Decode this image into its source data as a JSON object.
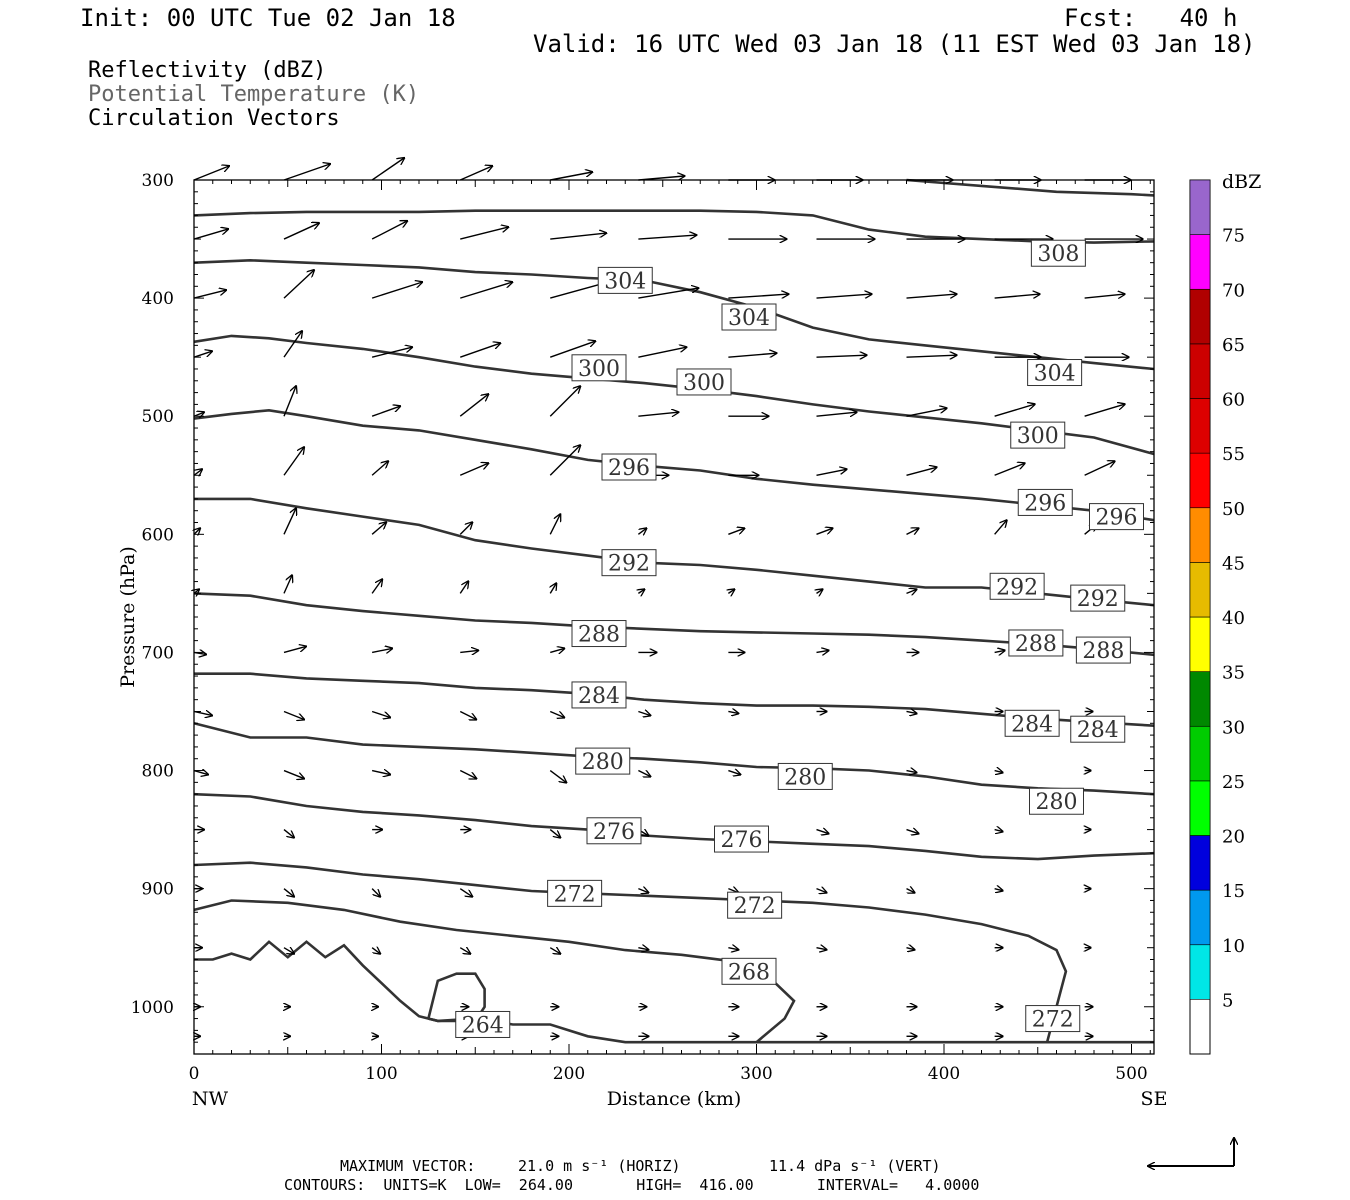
{
  "header": {
    "init": "Init: 00 UTC Tue 02 Jan 18",
    "fcst": "Fcst:   40 h",
    "valid": "Valid: 16 UTC Wed 03 Jan 18 (11 EST Wed 03 Jan 18)"
  },
  "legend_lines": [
    {
      "text": "Reflectivity (dBZ)",
      "color": "#000000"
    },
    {
      "text": "Potential Temperature (K)",
      "color": "#666666"
    },
    {
      "text": "Circulation Vectors",
      "color": "#000000"
    }
  ],
  "chart_data": {
    "type": "line",
    "xlabel": "Distance (km)",
    "ylabel": "Pressure (hPa)",
    "xlim": [
      0,
      512
    ],
    "ylim": [
      1040,
      300
    ],
    "x_ticks": [
      0,
      100,
      200,
      300,
      400,
      500
    ],
    "y_ticks": [
      300,
      400,
      500,
      600,
      700,
      800,
      900,
      1000
    ],
    "x_end_labels": {
      "left": "NW",
      "right": "SE"
    },
    "contour_color": "#333333",
    "series": [
      {
        "label": "264",
        "label_points": [
          [
            154,
            1015
          ]
        ],
        "x": [
          125,
          130,
          140,
          150,
          155,
          155,
          150,
          140,
          130,
          125,
          125
        ],
        "y": [
          1010,
          978,
          972,
          972,
          985,
          1000,
          1012,
          1012,
          1012,
          1010,
          1010
        ]
      },
      {
        "label": "",
        "label_points": [],
        "x": [
          0,
          10,
          20,
          30,
          40,
          50,
          60,
          70,
          80,
          90,
          100,
          110,
          120,
          130,
          150,
          170,
          190,
          210,
          230,
          260,
          290,
          320,
          350,
          380,
          400,
          430,
          460,
          490,
          512
        ],
        "y": [
          960,
          960,
          955,
          960,
          945,
          958,
          945,
          958,
          948,
          965,
          980,
          995,
          1008,
          1012,
          1010,
          1015,
          1015,
          1025,
          1030,
          1030,
          1030,
          1030,
          1030,
          1030,
          1030,
          1030,
          1030,
          1030,
          1030
        ]
      },
      {
        "label": "268",
        "label_points": [
          [
            296,
            970
          ]
        ],
        "x": [
          0,
          20,
          50,
          80,
          110,
          140,
          170,
          200,
          230,
          260,
          290,
          310,
          320,
          315,
          300
        ],
        "y": [
          918,
          910,
          912,
          918,
          928,
          935,
          940,
          945,
          952,
          956,
          962,
          980,
          995,
          1010,
          1030
        ]
      },
      {
        "label": "272",
        "label_points": [
          [
            203,
            904
          ],
          [
            299,
            914
          ],
          [
            458,
            1010
          ]
        ],
        "x": [
          0,
          30,
          60,
          90,
          120,
          150,
          180,
          210,
          240,
          270,
          300,
          330,
          360,
          390,
          420,
          445,
          460,
          465,
          460,
          455
        ],
        "y": [
          880,
          878,
          882,
          888,
          892,
          897,
          902,
          904,
          906,
          908,
          910,
          912,
          916,
          922,
          930,
          940,
          952,
          970,
          1000,
          1030
        ]
      },
      {
        "label": "276",
        "label_points": [
          [
            224,
            851
          ],
          [
            292,
            858
          ]
        ],
        "x": [
          0,
          30,
          60,
          90,
          120,
          150,
          180,
          210,
          240,
          270,
          300,
          330,
          360,
          390,
          420,
          450,
          480,
          512
        ],
        "y": [
          820,
          822,
          830,
          835,
          838,
          842,
          847,
          850,
          855,
          858,
          860,
          862,
          864,
          868,
          873,
          875,
          872,
          870
        ]
      },
      {
        "label": "280",
        "label_points": [
          [
            218,
            792
          ],
          [
            326,
            805
          ],
          [
            460,
            826
          ]
        ],
        "x": [
          0,
          30,
          60,
          90,
          120,
          150,
          180,
          210,
          240,
          270,
          300,
          330,
          360,
          390,
          420,
          450,
          480,
          512
        ],
        "y": [
          760,
          772,
          772,
          778,
          780,
          782,
          785,
          788,
          790,
          793,
          797,
          798,
          800,
          805,
          812,
          815,
          817,
          820
        ]
      },
      {
        "label": "284",
        "label_points": [
          [
            216,
            736
          ],
          [
            447,
            760
          ],
          [
            482,
            765
          ]
        ],
        "x": [
          0,
          30,
          60,
          90,
          120,
          150,
          180,
          210,
          240,
          270,
          300,
          330,
          360,
          390,
          420,
          450,
          480,
          512
        ],
        "y": [
          718,
          718,
          722,
          724,
          726,
          730,
          732,
          735,
          740,
          743,
          745,
          745,
          746,
          748,
          752,
          756,
          759,
          762
        ]
      },
      {
        "label": "288",
        "label_points": [
          [
            216,
            684
          ],
          [
            449,
            692
          ],
          [
            485,
            698
          ]
        ],
        "x": [
          0,
          30,
          60,
          90,
          120,
          150,
          180,
          210,
          240,
          270,
          300,
          330,
          360,
          390,
          420,
          450,
          480,
          512
        ],
        "y": [
          650,
          652,
          660,
          665,
          669,
          673,
          675,
          678,
          680,
          682,
          683,
          684,
          685,
          687,
          690,
          693,
          697,
          702
        ]
      },
      {
        "label": "292",
        "label_points": [
          [
            232,
            624
          ],
          [
            439,
            644
          ],
          [
            482,
            654
          ]
        ],
        "x": [
          0,
          30,
          60,
          90,
          120,
          150,
          180,
          210,
          240,
          270,
          300,
          330,
          360,
          390,
          420,
          450,
          480,
          512
        ],
        "y": [
          570,
          570,
          578,
          585,
          592,
          605,
          612,
          618,
          624,
          626,
          630,
          635,
          640,
          645,
          645,
          650,
          655,
          660
        ]
      },
      {
        "label": "296",
        "label_points": [
          [
            232,
            543
          ],
          [
            454,
            573
          ],
          [
            492,
            585
          ]
        ],
        "x": [
          0,
          20,
          40,
          60,
          90,
          120,
          150,
          180,
          210,
          240,
          270,
          300,
          330,
          360,
          390,
          420,
          450,
          480,
          512
        ],
        "y": [
          502,
          498,
          495,
          500,
          508,
          512,
          520,
          528,
          537,
          542,
          546,
          553,
          558,
          562,
          566,
          570,
          575,
          580,
          588
        ]
      },
      {
        "label": "300",
        "label_points": [
          [
            216,
            459
          ],
          [
            272,
            471
          ],
          [
            450,
            516
          ]
        ],
        "x": [
          0,
          20,
          40,
          60,
          90,
          120,
          150,
          180,
          210,
          240,
          270,
          300,
          330,
          360,
          390,
          420,
          450,
          480,
          512
        ],
        "y": [
          437,
          432,
          434,
          438,
          443,
          450,
          458,
          464,
          468,
          472,
          477,
          483,
          490,
          496,
          501,
          506,
          512,
          518,
          532
        ]
      },
      {
        "label": "304",
        "label_points": [
          [
            230,
            385
          ],
          [
            296,
            416
          ],
          [
            459,
            463
          ]
        ],
        "x": [
          0,
          30,
          60,
          90,
          120,
          150,
          180,
          210,
          240,
          270,
          300,
          330,
          360,
          390,
          420,
          450,
          480,
          512
        ],
        "y": [
          370,
          368,
          370,
          372,
          374,
          378,
          380,
          383,
          385,
          395,
          408,
          425,
          435,
          440,
          445,
          450,
          455,
          460
        ]
      },
      {
        "label": "308",
        "label_points": [
          [
            461,
            362
          ]
        ],
        "x": [
          0,
          30,
          60,
          90,
          120,
          150,
          180,
          210,
          240,
          270,
          300,
          330,
          360,
          390,
          420,
          450,
          480,
          512
        ],
        "y": [
          330,
          328,
          327,
          327,
          327,
          326,
          326,
          326,
          326,
          326,
          327,
          330,
          342,
          348,
          350,
          352,
          353,
          352
        ]
      },
      {
        "label": "",
        "label_points": [],
        "x": [
          380,
          420,
          460,
          500,
          512
        ],
        "y": [
          300,
          305,
          310,
          312,
          313
        ]
      }
    ],
    "vectors": {
      "x": [
        0,
        48,
        95,
        142,
        190,
        237,
        285,
        332,
        380,
        427,
        475
      ],
      "p": [
        300,
        350,
        400,
        450,
        500,
        550,
        600,
        650,
        700,
        750,
        800,
        850,
        900,
        950,
        1000,
        1025
      ],
      "dx": [
        [
          35,
          46,
          32,
          32,
          42,
          46,
          46,
          46,
          46,
          46,
          46
        ],
        [
          34,
          35,
          35,
          48,
          56,
          58,
          58,
          58,
          58,
          58,
          58
        ],
        [
          32,
          30,
          50,
          52,
          58,
          60,
          60,
          55,
          50,
          45,
          40
        ],
        [
          18,
          18,
          40,
          40,
          45,
          48,
          48,
          50,
          50,
          46,
          44
        ],
        [
          10,
          12,
          28,
          28,
          30,
          40,
          40,
          40,
          40,
          40,
          40
        ],
        [
          8,
          20,
          16,
          28,
          30,
          30,
          30,
          30,
          30,
          30,
          30
        ],
        [
          6,
          12,
          14,
          12,
          10,
          8,
          16,
          16,
          12,
          12,
          12
        ],
        [
          5,
          8,
          10,
          8,
          6,
          6,
          6,
          6,
          10,
          10,
          6
        ],
        [
          12,
          22,
          20,
          18,
          14,
          18,
          16,
          12,
          12,
          10,
          8
        ],
        [
          18,
          20,
          18,
          16,
          14,
          12,
          10,
          10,
          10,
          8,
          8
        ],
        [
          14,
          20,
          18,
          16,
          16,
          12,
          12,
          10,
          10,
          8,
          6
        ],
        [
          10,
          10,
          10,
          10,
          10,
          10,
          10,
          12,
          12,
          8,
          6
        ],
        [
          8,
          10,
          8,
          12,
          10,
          10,
          10,
          10,
          8,
          8,
          6
        ],
        [
          8,
          10,
          8,
          10,
          10,
          10,
          10,
          10,
          8,
          8,
          6
        ],
        [
          6,
          6,
          6,
          8,
          8,
          8,
          10,
          10,
          10,
          8,
          8
        ],
        [
          6,
          6,
          6,
          8,
          8,
          10,
          10,
          10,
          10,
          8,
          8
        ]
      ],
      "dy": [
        [
          -14,
          -16,
          -22,
          -14,
          -8,
          -4,
          0,
          0,
          0,
          0,
          0
        ],
        [
          -10,
          -16,
          -18,
          -12,
          -6,
          -4,
          0,
          0,
          0,
          0,
          0
        ],
        [
          -8,
          -28,
          -16,
          -16,
          -16,
          -10,
          -4,
          -4,
          -4,
          -4,
          -4
        ],
        [
          -6,
          -26,
          -10,
          -14,
          -16,
          -10,
          -4,
          -2,
          -2,
          0,
          0
        ],
        [
          -4,
          -30,
          -10,
          -22,
          -30,
          -4,
          0,
          -4,
          -8,
          -12,
          -12
        ],
        [
          -6,
          -28,
          -14,
          -12,
          -30,
          0,
          0,
          -6,
          -8,
          -12,
          -14
        ],
        [
          -6,
          -26,
          -12,
          -12,
          -20,
          -6,
          -6,
          -6,
          -6,
          -14,
          -10
        ],
        [
          -4,
          -18,
          -14,
          -12,
          -10,
          -4,
          -4,
          -4,
          -4,
          -8,
          -6
        ],
        [
          2,
          -6,
          -4,
          -2,
          -4,
          0,
          0,
          -2,
          0,
          -2,
          0
        ],
        [
          4,
          8,
          6,
          8,
          6,
          4,
          2,
          0,
          2,
          0,
          0
        ],
        [
          4,
          8,
          4,
          8,
          12,
          6,
          4,
          4,
          2,
          2,
          0
        ],
        [
          0,
          8,
          0,
          0,
          8,
          6,
          4,
          4,
          4,
          2,
          0
        ],
        [
          0,
          8,
          8,
          8,
          6,
          4,
          4,
          4,
          4,
          2,
          0
        ],
        [
          0,
          6,
          6,
          6,
          6,
          2,
          2,
          2,
          2,
          0,
          0
        ],
        [
          0,
          0,
          0,
          0,
          0,
          0,
          0,
          0,
          0,
          0,
          0
        ],
        [
          0,
          0,
          0,
          0,
          0,
          0,
          0,
          0,
          0,
          0,
          0
        ]
      ]
    },
    "colorbar": {
      "unit": "dBZ",
      "values": [
        5,
        10,
        15,
        20,
        25,
        30,
        35,
        40,
        45,
        50,
        55,
        60,
        65,
        70,
        75
      ],
      "colors": [
        "#00e6e6",
        "#0099ee",
        "#0000dd",
        "#00ff00",
        "#00cc00",
        "#008800",
        "#ffff00",
        "#e6bb00",
        "#ff8c00",
        "#ff0000",
        "#dd0000",
        "#cc0000",
        "#b00000",
        "#ff00ff",
        "#9966cc"
      ]
    }
  },
  "footer": {
    "max_vector_label": "MAXIMUM VECTOR:",
    "horiz_value": "21.0 m s⁻¹ (HORIZ)",
    "vert_value": "11.4 dPa s⁻¹ (VERT)",
    "contours_line": "CONTOURS:  UNITS=K  LOW=  264.00       HIGH=  416.00       INTERVAL=   4.0000"
  }
}
